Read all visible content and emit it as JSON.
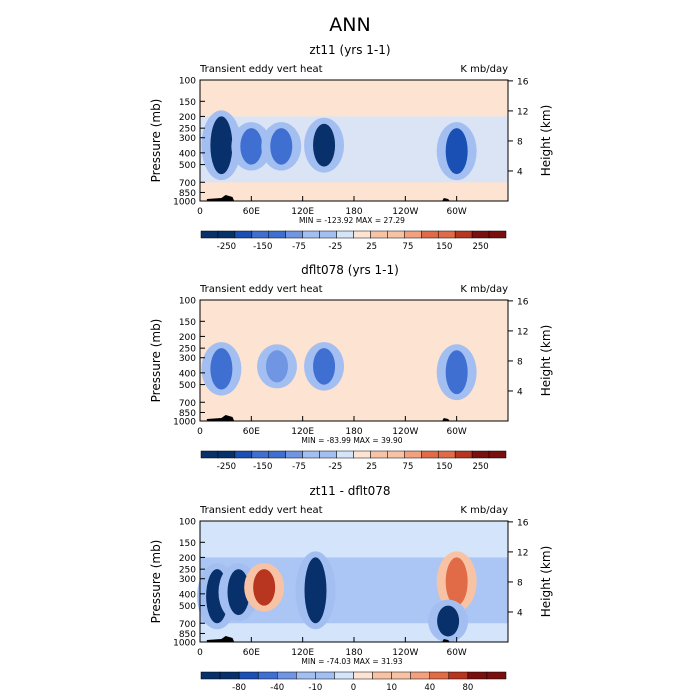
{
  "figure_title": "ANN",
  "colors": {
    "low_dark": "#08306b",
    "low_mid": "#3f6fd1",
    "low_light": "#d4e4fb",
    "high_light": "#fde3d2",
    "high_mid": "#f2a07e",
    "high_dark": "#7a0f0f",
    "topography": "#000000"
  },
  "panels": [
    {
      "title": "zt11 (yrs 1-1)",
      "left_label": "Transient eddy vert heat",
      "right_label": "K mb/day",
      "ylabel": "Pressure (mb)",
      "y2label": "Height (km)",
      "ytick_labels": [
        "100",
        "150",
        "200",
        "250",
        "300",
        "400",
        "500",
        "700",
        "850",
        "1000"
      ],
      "y2tick_labels": [
        "16",
        "12",
        "8",
        "4"
      ],
      "xtick_labels": [
        "0",
        "60E",
        "120E",
        "180",
        "120W",
        "60W"
      ],
      "stats": "MIN = -123.92   MAX =  27.29",
      "colorbar_labels": [
        "-250",
        "-150",
        "-75",
        "-25",
        "25",
        "75",
        "150",
        "250"
      ]
    },
    {
      "title": "dflt078 (yrs 1-1)",
      "left_label": "Transient eddy vert heat",
      "right_label": "K mb/day",
      "ylabel": "Pressure (mb)",
      "y2label": "Height (km)",
      "ytick_labels": [
        "100",
        "150",
        "200",
        "250",
        "300",
        "400",
        "500",
        "700",
        "850",
        "1000"
      ],
      "y2tick_labels": [
        "16",
        "12",
        "8",
        "4"
      ],
      "xtick_labels": [
        "0",
        "60E",
        "120E",
        "180",
        "120W",
        "60W"
      ],
      "stats": "MIN = -83.99   MAX =  39.90",
      "colorbar_labels": [
        "-250",
        "-150",
        "-75",
        "-25",
        "25",
        "75",
        "150",
        "250"
      ]
    },
    {
      "title": "zt11 - dflt078",
      "left_label": "Transient eddy vert heat",
      "right_label": "K mb/day",
      "ylabel": "Pressure (mb)",
      "y2label": "Height (km)",
      "ytick_labels": [
        "100",
        "150",
        "200",
        "250",
        "300",
        "400",
        "500",
        "700",
        "850",
        "1000"
      ],
      "y2tick_labels": [
        "16",
        "12",
        "8",
        "4"
      ],
      "xtick_labels": [
        "0",
        "60E",
        "120E",
        "180",
        "120W",
        "60W"
      ],
      "stats": "MIN = -74.03   MAX =  31.93",
      "colorbar_labels": [
        "-80",
        "-40",
        "-10",
        "0",
        "10",
        "40",
        "80"
      ]
    }
  ],
  "chart_data": [
    {
      "type": "heatmap",
      "title": "zt11 (yrs 1-1)",
      "field": "Transient eddy vert heat",
      "units": "K mb/day",
      "xlabel": "",
      "ylabel": "Pressure (mb)",
      "y2label": "Height (km)",
      "x_ticks": [
        "0",
        "60E",
        "120E",
        "180",
        "120W",
        "60W"
      ],
      "y_ticks_mb": [
        100,
        150,
        200,
        250,
        300,
        400,
        500,
        700,
        850,
        1000
      ],
      "y2_ticks_km": [
        16,
        12,
        8,
        4
      ],
      "ylim_mb": [
        1000,
        100
      ],
      "min": -123.92,
      "max": 27.29,
      "colorbar_levels": [
        -250,
        -150,
        -75,
        -25,
        25,
        75,
        150,
        250
      ],
      "features": [
        {
          "lon": 25,
          "p_top": 200,
          "p_bot": 600,
          "value": -110
        },
        {
          "lon": 60,
          "p_top": 250,
          "p_bot": 500,
          "value": -60
        },
        {
          "lon": 95,
          "p_top": 250,
          "p_bot": 500,
          "value": -60
        },
        {
          "lon": 145,
          "p_top": 230,
          "p_bot": 520,
          "value": -100
        },
        {
          "lon": 300,
          "p_top": 250,
          "p_bot": 600,
          "value": -90
        }
      ]
    },
    {
      "type": "heatmap",
      "title": "dflt078 (yrs 1-1)",
      "field": "Transient eddy vert heat",
      "units": "K mb/day",
      "xlabel": "",
      "ylabel": "Pressure (mb)",
      "y2label": "Height (km)",
      "x_ticks": [
        "0",
        "60E",
        "120E",
        "180",
        "120W",
        "60W"
      ],
      "y_ticks_mb": [
        100,
        150,
        200,
        250,
        300,
        400,
        500,
        700,
        850,
        1000
      ],
      "y2_ticks_km": [
        16,
        12,
        8,
        4
      ],
      "ylim_mb": [
        1000,
        100
      ],
      "min": -83.99,
      "max": 39.9,
      "colorbar_levels": [
        -250,
        -150,
        -75,
        -25,
        25,
        75,
        150,
        250
      ],
      "features": [
        {
          "lon": 25,
          "p_top": 250,
          "p_bot": 550,
          "value": -60
        },
        {
          "lon": 90,
          "p_top": 260,
          "p_bot": 480,
          "value": -50
        },
        {
          "lon": 145,
          "p_top": 250,
          "p_bot": 500,
          "value": -55
        },
        {
          "lon": 300,
          "p_top": 260,
          "p_bot": 600,
          "value": -60
        }
      ]
    },
    {
      "type": "heatmap",
      "title": "zt11 - dflt078",
      "field": "Transient eddy vert heat",
      "units": "K mb/day",
      "xlabel": "",
      "ylabel": "Pressure (mb)",
      "y2label": "Height (km)",
      "x_ticks": [
        "0",
        "60E",
        "120E",
        "180",
        "120W",
        "60W"
      ],
      "y_ticks_mb": [
        100,
        150,
        200,
        250,
        300,
        400,
        500,
        700,
        850,
        1000
      ],
      "y2_ticks_km": [
        16,
        12,
        8,
        4
      ],
      "ylim_mb": [
        1000,
        100
      ],
      "min": -74.03,
      "max": 31.93,
      "colorbar_levels": [
        -80,
        -40,
        -10,
        0,
        10,
        40,
        80
      ],
      "features": [
        {
          "lon": 20,
          "p_top": 250,
          "p_bot": 700,
          "value": -60
        },
        {
          "lon": 45,
          "p_top": 250,
          "p_bot": 600,
          "value": -40
        },
        {
          "lon": 75,
          "p_top": 250,
          "p_bot": 500,
          "value": 25
        },
        {
          "lon": 135,
          "p_top": 200,
          "p_bot": 700,
          "value": -50
        },
        {
          "lon": 300,
          "p_top": 200,
          "p_bot": 500,
          "value": 20
        },
        {
          "lon": 290,
          "p_top": 500,
          "p_bot": 900,
          "value": -50
        }
      ]
    }
  ]
}
